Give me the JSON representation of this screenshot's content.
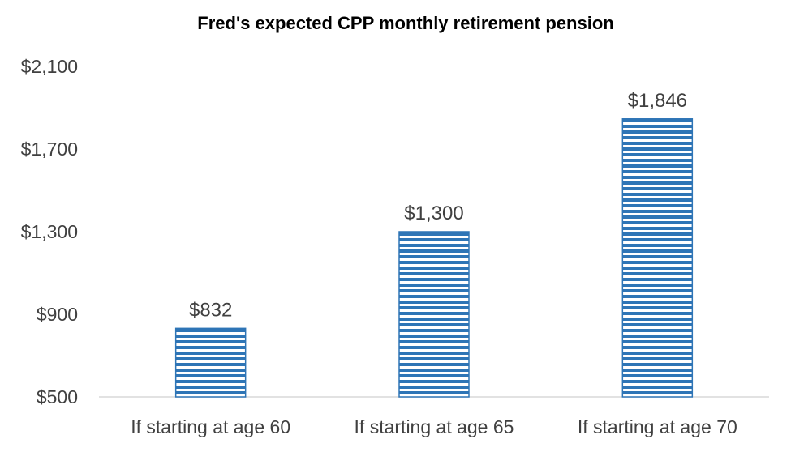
{
  "chart_data": {
    "type": "bar",
    "title": "Fred's expected CPP monthly retirement pension",
    "categories": [
      "If starting at age 60",
      "If starting at age 65",
      "If starting at age 70"
    ],
    "values": [
      832,
      1300,
      1846
    ],
    "data_labels": [
      "$832",
      "$1,300",
      "$1,846"
    ],
    "ylim": [
      500,
      2100
    ],
    "yticks": [
      500,
      900,
      1300,
      1700,
      2100
    ],
    "ytick_labels": [
      "$500",
      "$900",
      "$1,300",
      "$1,700",
      "$2,100"
    ],
    "xlabel": "",
    "ylabel": "",
    "grid": false,
    "legend": "none",
    "bar_fill": "horizontal-stripes",
    "colors": {
      "bar": "#2e75b6",
      "stripe_gap": "#ffffff",
      "axis": "#d9d9d9",
      "text": "#404040"
    }
  }
}
